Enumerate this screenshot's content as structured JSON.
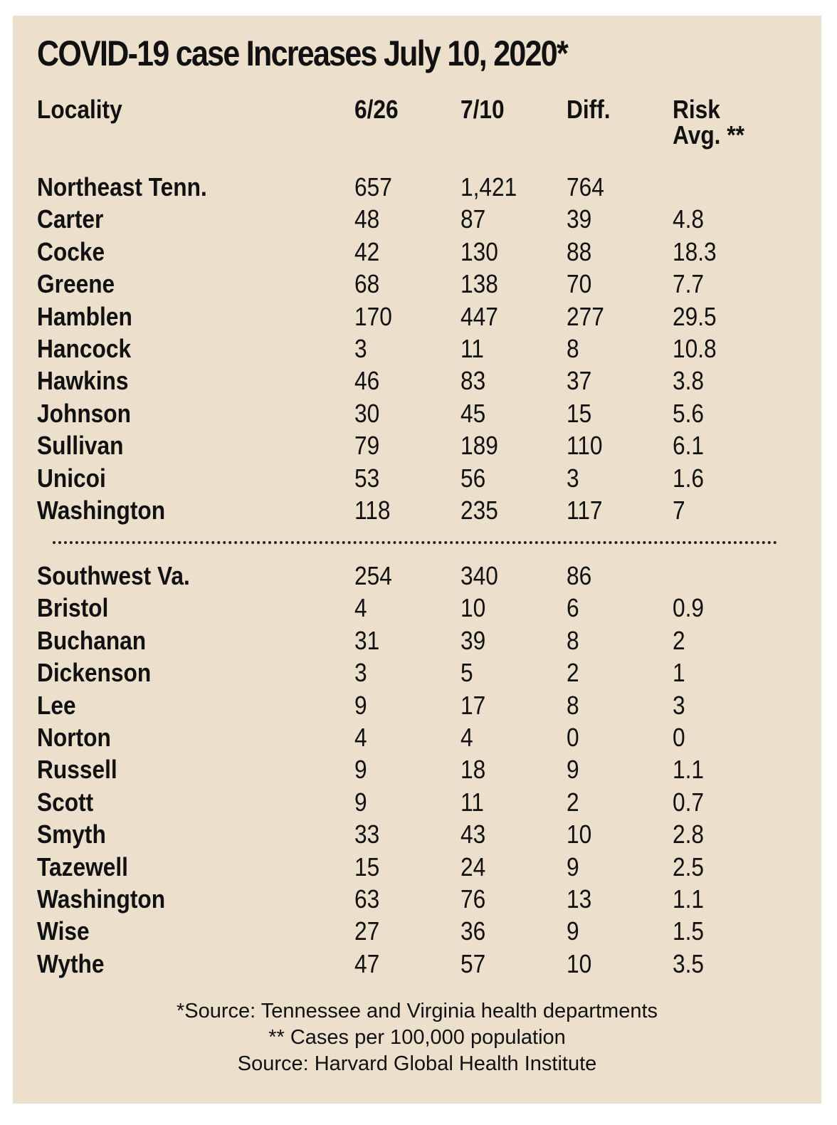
{
  "title": "COVID-19 case Increases July 10, 2020*",
  "header": {
    "locality": "Locality",
    "col_626": "6/26",
    "col_710": "7/10",
    "diff": "Diff.",
    "risk_line1": "Risk",
    "risk_line2": "Avg. **"
  },
  "chart_data": {
    "type": "table",
    "title": "COVID-19 case Increases July 10, 2020*",
    "columns": [
      "Locality",
      "6/26",
      "7/10",
      "Diff.",
      "Risk Avg. **"
    ],
    "groups": [
      {
        "rows": [
          [
            "Northeast Tenn.",
            "657",
            "1,421",
            "764",
            ""
          ],
          [
            "Carter",
            "48",
            "87",
            "39",
            "4.8"
          ],
          [
            "Cocke",
            "42",
            "130",
            "88",
            "18.3"
          ],
          [
            "Greene",
            "68",
            "138",
            "70",
            "7.7"
          ],
          [
            "Hamblen",
            "170",
            "447",
            "277",
            "29.5"
          ],
          [
            "Hancock",
            "3",
            "11",
            "8",
            "10.8"
          ],
          [
            "Hawkins",
            "46",
            "83",
            "37",
            "3.8"
          ],
          [
            "Johnson",
            "30",
            "45",
            "15",
            "5.6"
          ],
          [
            "Sullivan",
            "79",
            "189",
            "110",
            "6.1"
          ],
          [
            "Unicoi",
            "53",
            "56",
            "3",
            "1.6"
          ],
          [
            "Washington",
            "118",
            "235",
            "117",
            "7"
          ]
        ]
      },
      {
        "rows": [
          [
            "Southwest Va.",
            "254",
            "340",
            "86",
            ""
          ],
          [
            "Bristol",
            "4",
            "10",
            "6",
            "0.9"
          ],
          [
            "Buchanan",
            "31",
            "39",
            "8",
            "2"
          ],
          [
            "Dickenson",
            "3",
            "5",
            "2",
            "1"
          ],
          [
            "Lee",
            "9",
            "17",
            "8",
            "3"
          ],
          [
            "Norton",
            "4",
            "4",
            "0",
            "0"
          ],
          [
            "Russell",
            "9",
            "18",
            "9",
            "1.1"
          ],
          [
            "Scott",
            "9",
            "11",
            "2",
            "0.7"
          ],
          [
            "Smyth",
            "33",
            "43",
            "10",
            "2.8"
          ],
          [
            "Tazewell",
            "15",
            "24",
            "9",
            "2.5"
          ],
          [
            "Washington",
            "63",
            "76",
            "13",
            "1.1"
          ],
          [
            "Wise",
            "27",
            "36",
            "9",
            "1.5"
          ],
          [
            "Wythe",
            "47",
            "57",
            "10",
            "3.5"
          ]
        ]
      }
    ]
  },
  "notes": [
    "*Source: Tennessee and Virginia health departments",
    "** Cases per 100,000 population",
    "Source: Harvard Global Health Institute"
  ],
  "colors": {
    "background": "#ece0cd",
    "text": "#111111"
  }
}
